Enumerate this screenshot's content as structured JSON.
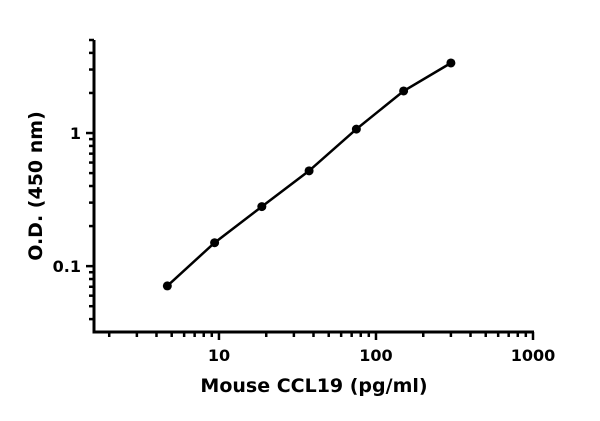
{
  "chart_data": {
    "type": "scatter",
    "title": "",
    "xlabel": "Mouse CCL19 (pg/ml)",
    "ylabel": "O.D. (450 nm)",
    "x_scale": "log",
    "y_scale": "log",
    "xlim": [
      1.6,
      1000
    ],
    "ylim": [
      0.032,
      5
    ],
    "x_ticks": [
      {
        "value": 10,
        "label": "10"
      },
      {
        "value": 100,
        "label": "100"
      },
      {
        "value": 1000,
        "label": "1000"
      }
    ],
    "y_ticks": [
      {
        "value": 0.1,
        "label": "0.1"
      },
      {
        "value": 1,
        "label": "1"
      }
    ],
    "grid": false,
    "series": [
      {
        "x": [
          4.69,
          9.38,
          18.75,
          37.5,
          75,
          150,
          300
        ],
        "y": [
          0.071,
          0.15,
          0.28,
          0.52,
          1.07,
          2.07,
          3.36
        ],
        "fit_line": true
      }
    ],
    "colors": {
      "marker": "#000000",
      "line": "#000000"
    }
  }
}
